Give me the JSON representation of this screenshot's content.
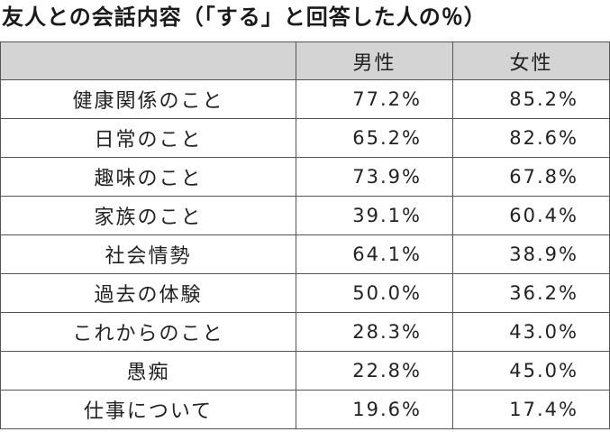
{
  "chart_data": {
    "type": "table",
    "title": "友人との会話内容（「する」と回答した人の％）",
    "columns": [
      "",
      "男性",
      "女性"
    ],
    "rows": [
      {
        "label": "健康関係のこと",
        "male": "77.2%",
        "female": "85.2%"
      },
      {
        "label": "日常のこと",
        "male": "65.2%",
        "female": "82.6%"
      },
      {
        "label": "趣味のこと",
        "male": "73.9%",
        "female": "67.8%"
      },
      {
        "label": "家族のこと",
        "male": "39.1%",
        "female": "60.4%"
      },
      {
        "label": "社会情勢",
        "male": "64.1%",
        "female": "38.9%"
      },
      {
        "label": "過去の体験",
        "male": "50.0%",
        "female": "36.2%"
      },
      {
        "label": "これからのこと",
        "male": "28.3%",
        "female": "43.0%"
      },
      {
        "label": "愚痴",
        "male": "22.8%",
        "female": "45.0%"
      },
      {
        "label": "仕事について",
        "male": "19.6%",
        "female": "17.4%"
      }
    ]
  },
  "colors": {
    "header_background": "#d4d4d4",
    "border": "#555555",
    "text": "#222222"
  }
}
